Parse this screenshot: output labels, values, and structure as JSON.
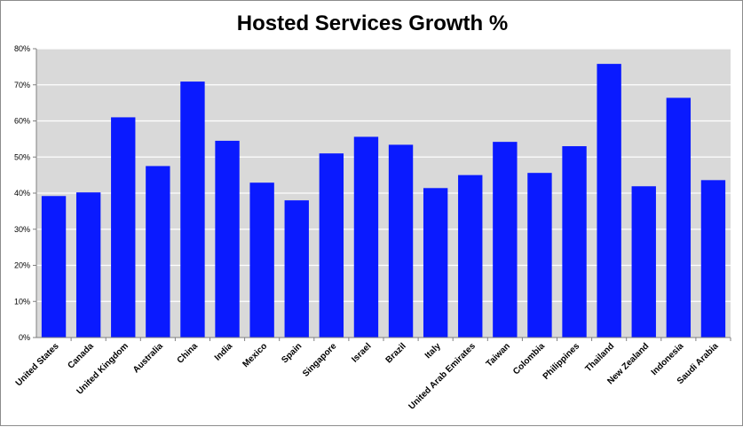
{
  "chart_data": {
    "type": "bar",
    "title": "Hosted Services Growth %",
    "xlabel": "",
    "ylabel": "",
    "ylim": [
      0,
      80
    ],
    "y_tick_step": 10,
    "y_tick_format": "percent",
    "grid": true,
    "legend": "none",
    "colors": {
      "bar": "#0a1aff",
      "plot_background": "#d9d9d9",
      "gridline": "#ffffff"
    },
    "categories": [
      "United States",
      "Canada",
      "United Kingdom",
      "Australia",
      "China",
      "India",
      "Mexico",
      "Spain",
      "Singapore",
      "Israel",
      "Brazil",
      "Italy",
      "United Arab Emirates",
      "Taiwan",
      "Colombia",
      "Philippines",
      "Thailand",
      "New Zealand",
      "Indonesia",
      "Saudi Arabia"
    ],
    "values": [
      39.2,
      40.2,
      61.0,
      47.5,
      70.9,
      54.5,
      42.9,
      38.0,
      51.0,
      55.6,
      53.4,
      41.4,
      45.0,
      54.2,
      45.6,
      53.0,
      75.8,
      41.9,
      66.4,
      43.6
    ]
  }
}
